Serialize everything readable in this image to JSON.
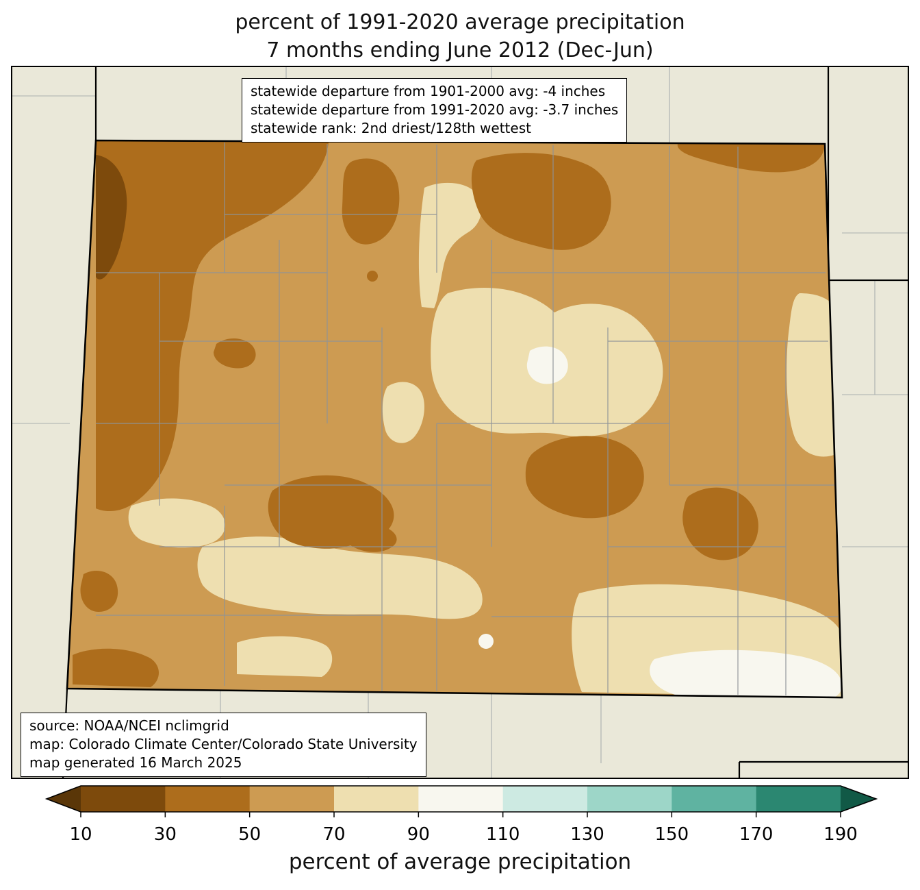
{
  "title": {
    "line1": "percent of 1991-2020 average precipitation",
    "line2": "7 months ending June 2012 (Dec-Jun)"
  },
  "stats_box": {
    "line1": "statewide departure from 1901-2000 avg: -4 inches",
    "line2": "statewide departure from 1991-2020 avg: -3.7 inches",
    "line3": "statewide rank: 2nd driest/128th wettest"
  },
  "source_box": {
    "line1": "source: NOAA/NCEI nclimgrid",
    "line2": "map: Colorado Climate Center/Colorado State University",
    "line3": "map generated 16 March 2025"
  },
  "colorbar": {
    "label": "percent of average precipitation",
    "ticks": [
      10,
      30,
      50,
      70,
      90,
      110,
      130,
      150,
      170,
      190
    ],
    "segments": [
      {
        "range": "<10",
        "color": "#5a3608"
      },
      {
        "range": "10-30",
        "color": "#7d4a0c"
      },
      {
        "range": "30-50",
        "color": "#ad6d1c"
      },
      {
        "range": "50-70",
        "color": "#cd9b52"
      },
      {
        "range": "70-90",
        "color": "#eedfb0"
      },
      {
        "range": "90-110",
        "color": "#f8f7ef"
      },
      {
        "range": "110-130",
        "color": "#cdeae2"
      },
      {
        "range": "130-150",
        "color": "#9dd6c8"
      },
      {
        "range": "150-170",
        "color": "#5fb3a1"
      },
      {
        "range": "170-190",
        "color": "#2b8771"
      },
      {
        "range": ">190",
        "color": "#115946"
      }
    ]
  },
  "map": {
    "background_color": "#eae8d9",
    "level_colors": {
      "lt10": "#5a3608",
      "p10_30": "#7d4a0c",
      "p30_50": "#ad6d1c",
      "p50_70": "#cd9b52",
      "p70_90": "#eedfb0",
      "p90_110": "#f8f7ef"
    },
    "boundary_colors": {
      "state": "#000000",
      "county": "#8e9398"
    }
  }
}
